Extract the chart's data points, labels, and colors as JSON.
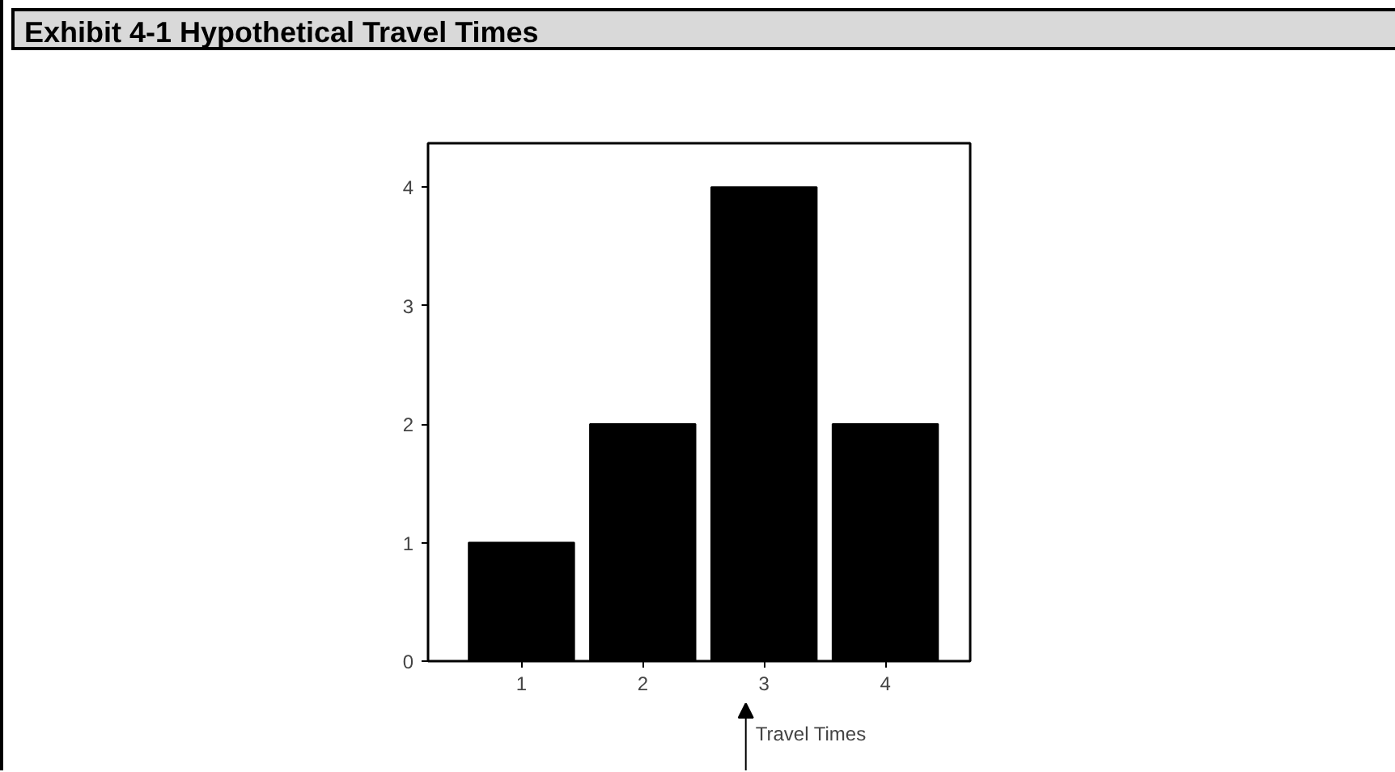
{
  "chart_data": {
    "type": "bar",
    "title": "Exhibit 4-1 Hypothetical Travel Times",
    "categories": [
      "1",
      "2",
      "3",
      "4"
    ],
    "values": [
      1,
      2,
      4,
      2
    ],
    "color": "#000000",
    "xlabel": "Travel Times",
    "ylim": [
      0,
      4.37
    ],
    "yticks": [
      0,
      1,
      2,
      3,
      4
    ],
    "grid": false
  }
}
